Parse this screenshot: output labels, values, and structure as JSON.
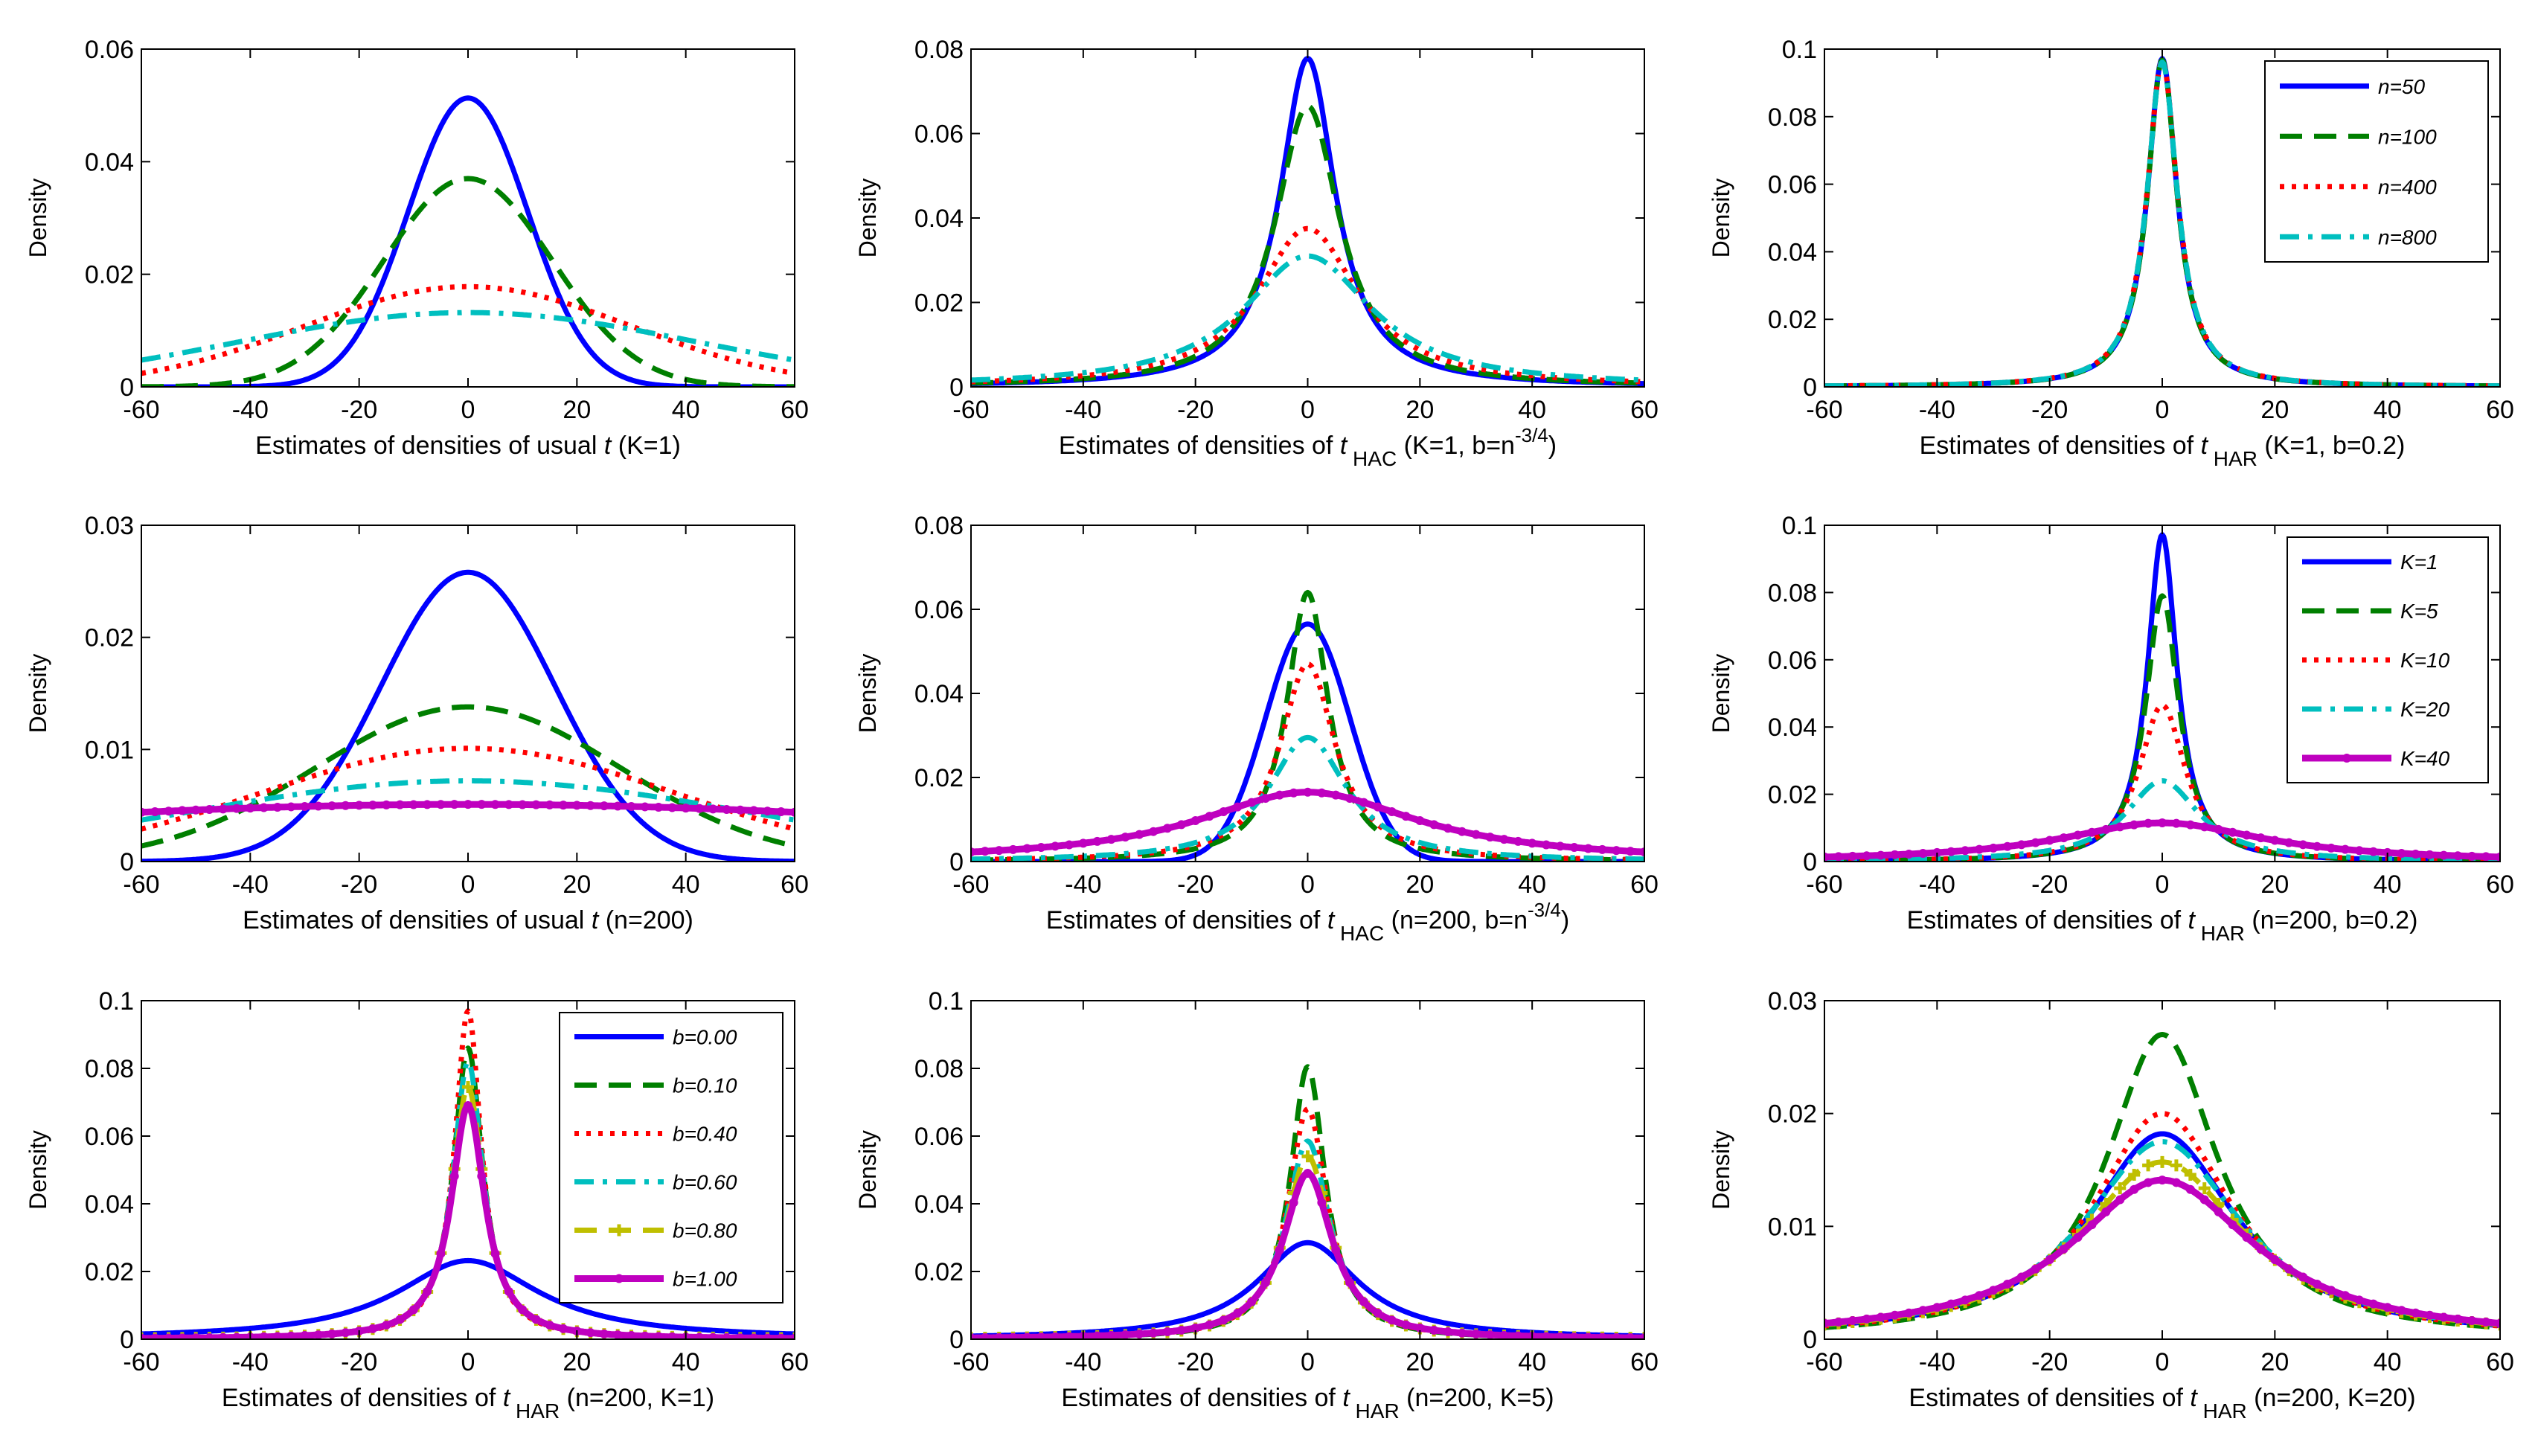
{
  "figure": {
    "y_axis_label": "Density",
    "colors": {
      "blue": "#0000FF",
      "green": "#007F00",
      "red": "#FF0000",
      "cyan": "#00BFBF",
      "olive": "#BFBF00",
      "magenta": "#BF00BF"
    }
  },
  "chart_data": [
    {
      "id": "p11",
      "type": "line",
      "xlabel": {
        "pre": "Estimates of densities of usual ",
        "var": "t",
        "sub": "",
        "post": " (K=1)",
        "sup": ""
      },
      "ylabel": "Density",
      "xlim": [
        -60,
        60
      ],
      "xticks": [
        "-60",
        "-40",
        "-20",
        "0",
        "20",
        "40",
        "60"
      ],
      "ylim": [
        0,
        0.06
      ],
      "yticks": [
        "0",
        "0.02",
        "0.04",
        "0.06"
      ],
      "legend": null,
      "series": [
        {
          "name": "n=50",
          "kind": "gauss",
          "peak": 0.0513,
          "width": 11.0,
          "color": "blue",
          "style": "solid"
        },
        {
          "name": "n=100",
          "kind": "gauss",
          "peak": 0.037,
          "width": 15.5,
          "color": "green",
          "style": "dash"
        },
        {
          "name": "n=400",
          "kind": "gauss",
          "peak": 0.0178,
          "width": 30.0,
          "color": "red",
          "style": "dot"
        },
        {
          "name": "n=800",
          "kind": "gauss",
          "peak": 0.0132,
          "width": 42.0,
          "color": "cyan",
          "style": "dashdot"
        }
      ]
    },
    {
      "id": "p12",
      "type": "line",
      "xlabel": {
        "pre": "Estimates of densities of ",
        "var": "t",
        "sub": "HAC",
        "post": " (K=1, b=n",
        "sup": "-3/4",
        "close": ")"
      },
      "ylabel": "Density",
      "xlim": [
        -60,
        60
      ],
      "xticks": [
        "-60",
        "-40",
        "-20",
        "0",
        "20",
        "40",
        "60"
      ],
      "ylim": [
        0,
        0.08
      ],
      "yticks": [
        "0",
        "0.02",
        "0.04",
        "0.06",
        "0.08"
      ],
      "legend": null,
      "series": [
        {
          "name": "n=50",
          "kind": "cauchy",
          "peak": 0.0778,
          "width": 6.0,
          "color": "blue",
          "style": "solid"
        },
        {
          "name": "n=100",
          "kind": "cauchy",
          "peak": 0.0665,
          "width": 7.0,
          "color": "green",
          "style": "dash"
        },
        {
          "name": "n=400",
          "kind": "cauchy",
          "peak": 0.0375,
          "width": 11.0,
          "color": "red",
          "style": "dot"
        },
        {
          "name": "n=800",
          "kind": "cauchy",
          "peak": 0.031,
          "width": 14.0,
          "color": "cyan",
          "style": "dashdot"
        }
      ]
    },
    {
      "id": "p13",
      "type": "line",
      "xlabel": {
        "pre": "Estimates of densities of ",
        "var": "t",
        "sub": "HAR",
        "post": " (K=1,  b=0.2)",
        "sup": ""
      },
      "ylabel": "Density",
      "xlim": [
        -60,
        60
      ],
      "xticks": [
        "-60",
        "-40",
        "-20",
        "0",
        "20",
        "40",
        "60"
      ],
      "ylim": [
        0,
        0.1
      ],
      "yticks": [
        "0",
        "0.02",
        "0.04",
        "0.06",
        "0.08",
        "0.1"
      ],
      "legend": {
        "position": "top-right",
        "entries": [
          0,
          1,
          2,
          3
        ]
      },
      "series": [
        {
          "name": "n=50",
          "kind": "cauchy",
          "peak": 0.0972,
          "width": 3.2,
          "color": "blue",
          "style": "solid"
        },
        {
          "name": "n=100",
          "kind": "cauchy",
          "peak": 0.0968,
          "width": 3.2,
          "color": "green",
          "style": "dash"
        },
        {
          "name": "n=400",
          "kind": "cauchy",
          "peak": 0.0965,
          "width": 3.3,
          "color": "red",
          "style": "dot"
        },
        {
          "name": "n=800",
          "kind": "cauchy",
          "peak": 0.0962,
          "width": 3.3,
          "color": "cyan",
          "style": "dashdot"
        }
      ]
    },
    {
      "id": "p21",
      "type": "line",
      "xlabel": {
        "pre": "Estimates of densities of usual ",
        "var": "t",
        "sub": "",
        "post": " (n=200)",
        "sup": ""
      },
      "ylabel": "Density",
      "xlim": [
        -60,
        60
      ],
      "xticks": [
        "-60",
        "-40",
        "-20",
        "0",
        "20",
        "40",
        "60"
      ],
      "ylim": [
        0,
        0.03
      ],
      "yticks": [
        "0",
        "0.01",
        "0.02",
        "0.03"
      ],
      "legend": null,
      "series": [
        {
          "name": "K=1",
          "kind": "gauss",
          "peak": 0.0258,
          "width": 16.0,
          "color": "blue",
          "style": "solid"
        },
        {
          "name": "K=5",
          "kind": "gauss",
          "peak": 0.0138,
          "width": 28.0,
          "color": "green",
          "style": "dash"
        },
        {
          "name": "K=10",
          "kind": "gauss",
          "peak": 0.0101,
          "width": 38.0,
          "color": "red",
          "style": "dot"
        },
        {
          "name": "K=20",
          "kind": "gauss",
          "peak": 0.0072,
          "width": 52.0,
          "color": "cyan",
          "style": "dashdot"
        },
        {
          "name": "K=40",
          "kind": "gauss",
          "peak": 0.0051,
          "width": 110.0,
          "color": "magenta",
          "style": "marker"
        }
      ]
    },
    {
      "id": "p22",
      "type": "line",
      "xlabel": {
        "pre": "Estimates of densities of ",
        "var": "t",
        "sub": "HAC",
        "post": " (n=200,  b=n",
        "sup": "-3/4",
        "close": ")"
      },
      "ylabel": "Density",
      "xlim": [
        -60,
        60
      ],
      "xticks": [
        "-60",
        "-40",
        "-20",
        "0",
        "20",
        "40",
        "60"
      ],
      "ylim": [
        0,
        0.08
      ],
      "yticks": [
        "0",
        "0.02",
        "0.04",
        "0.06",
        "0.08"
      ],
      "legend": null,
      "series": [
        {
          "name": "K=1",
          "kind": "gauss",
          "peak": 0.0565,
          "width": 7.5,
          "color": "blue",
          "style": "solid"
        },
        {
          "name": "K=5",
          "kind": "cauchy",
          "peak": 0.064,
          "width": 4.5,
          "color": "green",
          "style": "dash"
        },
        {
          "name": "K=10",
          "kind": "cauchy",
          "peak": 0.047,
          "width": 6.0,
          "color": "red",
          "style": "dot"
        },
        {
          "name": "K=20",
          "kind": "cauchy",
          "peak": 0.0295,
          "width": 8.5,
          "color": "cyan",
          "style": "dashdot"
        },
        {
          "name": "K=40",
          "kind": "cauchy",
          "peak": 0.0165,
          "width": 24.0,
          "color": "magenta",
          "style": "marker"
        }
      ]
    },
    {
      "id": "p23",
      "type": "line",
      "xlabel": {
        "pre": "Estimates of densities of ",
        "var": "t",
        "sub": "HAR",
        "post": " (n=200,  b=0.2)",
        "sup": ""
      },
      "ylabel": "Density",
      "xlim": [
        -60,
        60
      ],
      "xticks": [
        "-60",
        "-40",
        "-20",
        "0",
        "20",
        "40",
        "60"
      ],
      "ylim": [
        0,
        0.1
      ],
      "yticks": [
        "0",
        "0.02",
        "0.04",
        "0.06",
        "0.08",
        "0.1"
      ],
      "legend": {
        "position": "top-right",
        "entries": [
          0,
          1,
          2,
          3,
          4
        ]
      },
      "series": [
        {
          "name": "K=1",
          "kind": "cauchy",
          "peak": 0.0972,
          "width": 3.2,
          "color": "blue",
          "style": "solid"
        },
        {
          "name": "K=5",
          "kind": "cauchy",
          "peak": 0.079,
          "width": 3.6,
          "color": "green",
          "style": "dash"
        },
        {
          "name": "K=10",
          "kind": "cauchy",
          "peak": 0.0465,
          "width": 5.0,
          "color": "red",
          "style": "dot"
        },
        {
          "name": "K=20",
          "kind": "cauchy",
          "peak": 0.024,
          "width": 8.0,
          "color": "cyan",
          "style": "dashdot"
        },
        {
          "name": "K=40",
          "kind": "cauchy",
          "peak": 0.0115,
          "width": 22.0,
          "color": "magenta",
          "style": "marker"
        }
      ]
    },
    {
      "id": "p31",
      "type": "line",
      "xlabel": {
        "pre": "Estimates of densities of ",
        "var": "t",
        "sub": "HAR",
        "post": " (n=200,  K=1)",
        "sup": ""
      },
      "ylabel": "Density",
      "xlim": [
        -60,
        60
      ],
      "xticks": [
        "-60",
        "-40",
        "-20",
        "0",
        "20",
        "40",
        "60"
      ],
      "ylim": [
        0,
        0.1
      ],
      "yticks": [
        "0",
        "0.02",
        "0.04",
        "0.06",
        "0.08",
        "0.1"
      ],
      "legend": {
        "position": "top-right",
        "entries": [
          0,
          1,
          2,
          3,
          4,
          5
        ]
      },
      "series": [
        {
          "name": "b=0.00",
          "kind": "cauchy",
          "peak": 0.0232,
          "width": 16.0,
          "color": "blue",
          "style": "solid"
        },
        {
          "name": "b=0.10",
          "kind": "cauchy",
          "peak": 0.086,
          "width": 3.3,
          "color": "green",
          "style": "dash"
        },
        {
          "name": "b=0.40",
          "kind": "cauchy",
          "peak": 0.097,
          "width": 3.0,
          "color": "red",
          "style": "dot"
        },
        {
          "name": "b=0.60",
          "kind": "cauchy",
          "peak": 0.082,
          "width": 3.4,
          "color": "cyan",
          "style": "dashdot"
        },
        {
          "name": "b=0.80",
          "kind": "cauchy",
          "peak": 0.0745,
          "width": 3.6,
          "color": "olive",
          "style": "dashmarker"
        },
        {
          "name": "b=1.00",
          "kind": "cauchy",
          "peak": 0.069,
          "width": 3.8,
          "color": "magenta",
          "style": "marker"
        }
      ]
    },
    {
      "id": "p32",
      "type": "line",
      "xlabel": {
        "pre": "Estimates of densities of ",
        "var": "t",
        "sub": "HAR",
        "post": " (n=200,  K=5)",
        "sup": ""
      },
      "ylabel": "Density",
      "xlim": [
        -60,
        60
      ],
      "xticks": [
        "-60",
        "-40",
        "-20",
        "0",
        "20",
        "40",
        "60"
      ],
      "ylim": [
        0,
        0.1
      ],
      "yticks": [
        "0",
        "0.02",
        "0.04",
        "0.06",
        "0.08",
        "0.1"
      ],
      "legend": null,
      "series": [
        {
          "name": "b=0.00",
          "kind": "cauchy",
          "peak": 0.0285,
          "width": 11.0,
          "color": "blue",
          "style": "solid"
        },
        {
          "name": "b=0.10",
          "kind": "cauchy",
          "peak": 0.0805,
          "width": 3.8,
          "color": "green",
          "style": "dash"
        },
        {
          "name": "b=0.40",
          "kind": "cauchy",
          "peak": 0.068,
          "width": 4.3,
          "color": "red",
          "style": "dot"
        },
        {
          "name": "b=0.60",
          "kind": "cauchy",
          "peak": 0.0585,
          "width": 4.8,
          "color": "cyan",
          "style": "dashdot"
        },
        {
          "name": "b=0.80",
          "kind": "cauchy",
          "peak": 0.054,
          "width": 5.0,
          "color": "olive",
          "style": "dashmarker"
        },
        {
          "name": "b=1.00",
          "kind": "cauchy",
          "peak": 0.049,
          "width": 5.4,
          "color": "magenta",
          "style": "marker"
        }
      ]
    },
    {
      "id": "p33",
      "type": "line",
      "xlabel": {
        "pre": "Estimates of densities of ",
        "var": "t",
        "sub": "HAR",
        "post": " (n=200,  K=20)",
        "sup": ""
      },
      "ylabel": "Density",
      "xlim": [
        -60,
        60
      ],
      "xticks": [
        "-60",
        "-40",
        "-20",
        "0",
        "20",
        "40",
        "60"
      ],
      "ylim": [
        0,
        0.03
      ],
      "yticks": [
        "0",
        "0.01",
        "0.02",
        "0.03"
      ],
      "legend": null,
      "series": [
        {
          "name": "b=0.00",
          "kind": "cauchy",
          "peak": 0.0182,
          "width": 16.0,
          "color": "blue",
          "style": "solid"
        },
        {
          "name": "b=0.10",
          "kind": "cauchy",
          "peak": 0.027,
          "width": 12.0,
          "color": "green",
          "style": "dash"
        },
        {
          "name": "b=0.40",
          "kind": "cauchy",
          "peak": 0.02,
          "width": 15.0,
          "color": "red",
          "style": "dot"
        },
        {
          "name": "b=0.60",
          "kind": "cauchy",
          "peak": 0.0175,
          "width": 17.0,
          "color": "cyan",
          "style": "dashdot"
        },
        {
          "name": "b=0.80",
          "kind": "cauchy",
          "peak": 0.0157,
          "width": 18.0,
          "color": "olive",
          "style": "dashmarker"
        },
        {
          "name": "b=1.00",
          "kind": "cauchy",
          "peak": 0.0141,
          "width": 20.0,
          "color": "magenta",
          "style": "marker"
        }
      ]
    }
  ]
}
